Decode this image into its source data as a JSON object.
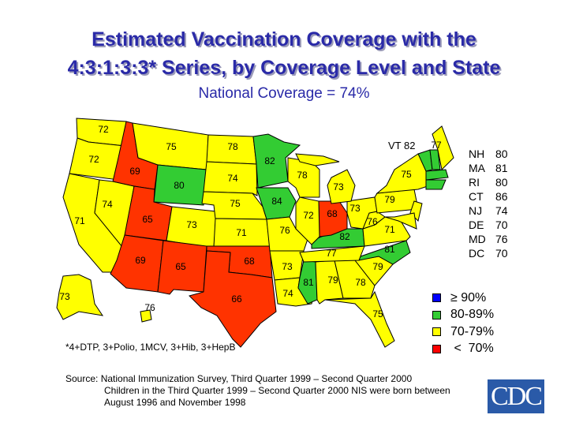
{
  "title_line1": "Estimated Vaccination Coverage with the",
  "title_line2": "4:3:1:3:3* Series, by Coverage Level and State",
  "subtitle": "National Coverage = 74%",
  "colors": {
    "ge90": "#0000ff",
    "80-89": "#33cc33",
    "70-79": "#ffff00",
    "lt70": "#ff3300"
  },
  "states": [
    {
      "abbr": "WA",
      "value": 72,
      "category": "70-79"
    },
    {
      "abbr": "OR",
      "value": 72,
      "category": "70-79"
    },
    {
      "abbr": "CA",
      "value": 71,
      "category": "70-79"
    },
    {
      "abbr": "NV",
      "value": 74,
      "category": "70-79"
    },
    {
      "abbr": "ID",
      "value": 69,
      "category": "lt70"
    },
    {
      "abbr": "MT",
      "value": 75,
      "category": "70-79"
    },
    {
      "abbr": "WY",
      "value": 80,
      "category": "80-89"
    },
    {
      "abbr": "UT",
      "value": 65,
      "category": "lt70"
    },
    {
      "abbr": "CO",
      "value": 73,
      "category": "70-79"
    },
    {
      "abbr": "AZ",
      "value": 69,
      "category": "lt70"
    },
    {
      "abbr": "NM",
      "value": 65,
      "category": "lt70"
    },
    {
      "abbr": "ND",
      "value": 78,
      "category": "70-79"
    },
    {
      "abbr": "SD",
      "value": 74,
      "category": "70-79"
    },
    {
      "abbr": "NE",
      "value": 75,
      "category": "70-79"
    },
    {
      "abbr": "KS",
      "value": 71,
      "category": "70-79"
    },
    {
      "abbr": "OK",
      "value": 68,
      "category": "lt70"
    },
    {
      "abbr": "TX",
      "value": 66,
      "category": "lt70"
    },
    {
      "abbr": "MN",
      "value": 82,
      "category": "80-89"
    },
    {
      "abbr": "IA",
      "value": 84,
      "category": "80-89"
    },
    {
      "abbr": "MO",
      "value": 76,
      "category": "70-79"
    },
    {
      "abbr": "AR",
      "value": 73,
      "category": "70-79"
    },
    {
      "abbr": "LA",
      "value": 74,
      "category": "70-79"
    },
    {
      "abbr": "WI",
      "value": 78,
      "category": "70-79"
    },
    {
      "abbr": "IL",
      "value": 72,
      "category": "70-79"
    },
    {
      "abbr": "MI",
      "value": 73,
      "category": "70-79"
    },
    {
      "abbr": "IN",
      "value": 68,
      "category": "lt70"
    },
    {
      "abbr": "OH",
      "value": 73,
      "category": "70-79"
    },
    {
      "abbr": "KY",
      "value": 82,
      "category": "80-89"
    },
    {
      "abbr": "TN",
      "value": 77,
      "category": "70-79"
    },
    {
      "abbr": "MS",
      "value": 81,
      "category": "80-89"
    },
    {
      "abbr": "AL",
      "value": 79,
      "category": "70-79"
    },
    {
      "abbr": "GA",
      "value": 78,
      "category": "70-79"
    },
    {
      "abbr": "FL",
      "value": 75,
      "category": "70-79"
    },
    {
      "abbr": "SC",
      "value": 79,
      "category": "70-79"
    },
    {
      "abbr": "NC",
      "value": 81,
      "category": "80-89"
    },
    {
      "abbr": "VA",
      "value": 71,
      "category": "70-79"
    },
    {
      "abbr": "WV",
      "value": 76,
      "category": "70-79"
    },
    {
      "abbr": "PA",
      "value": 79,
      "category": "70-79"
    },
    {
      "abbr": "NY",
      "value": 75,
      "category": "70-79"
    },
    {
      "abbr": "ME",
      "value": 77,
      "category": "70-79"
    },
    {
      "abbr": "AK",
      "value": 73,
      "category": "70-79"
    },
    {
      "abbr": "HI",
      "value": 76,
      "category": "70-79"
    },
    {
      "abbr": "VT",
      "value": 82,
      "category": "80-89"
    },
    {
      "abbr": "NH",
      "value": 80,
      "category": "80-89"
    },
    {
      "abbr": "MA",
      "value": 81,
      "category": "80-89"
    },
    {
      "abbr": "RI",
      "value": 80,
      "category": "80-89"
    },
    {
      "abbr": "CT",
      "value": 86,
      "category": "80-89"
    },
    {
      "abbr": "NJ",
      "value": 74,
      "category": "70-79"
    },
    {
      "abbr": "DE",
      "value": 70,
      "category": "70-79"
    },
    {
      "abbr": "MD",
      "value": 76,
      "category": "70-79"
    },
    {
      "abbr": "DC",
      "value": 70,
      "category": "70-79"
    }
  ],
  "vt_label": "VT 82",
  "side_table": [
    {
      "abbr": "NH",
      "value": "80"
    },
    {
      "abbr": "MA",
      "value": "81"
    },
    {
      "abbr": "RI",
      "value": "80"
    },
    {
      "abbr": "CT",
      "value": "86"
    },
    {
      "abbr": "NJ",
      "value": "74"
    },
    {
      "abbr": "DE",
      "value": "70"
    },
    {
      "abbr": "MD",
      "value": "76"
    },
    {
      "abbr": "DC",
      "value": "70"
    }
  ],
  "legend": [
    {
      "key": "ge90",
      "label": "≥  90%"
    },
    {
      "key": "80-89",
      "label": "80-89%"
    },
    {
      "key": "70-79",
      "label": "70-79%"
    },
    {
      "key": "lt70",
      "label": " <  70%"
    }
  ],
  "footnote": "*4+DTP, 3+Polio, 1MCV, 3+Hib, 3+HepB",
  "source_line1": "Source:  National Immunization Survey, Third Quarter 1999 – Second Quarter 2000",
  "source_line2": "Children in the Third Quarter 1999 – Second Quarter 2000 NIS were born between",
  "source_line3": "August 1996 and November 1998",
  "logo_text": "CDC"
}
